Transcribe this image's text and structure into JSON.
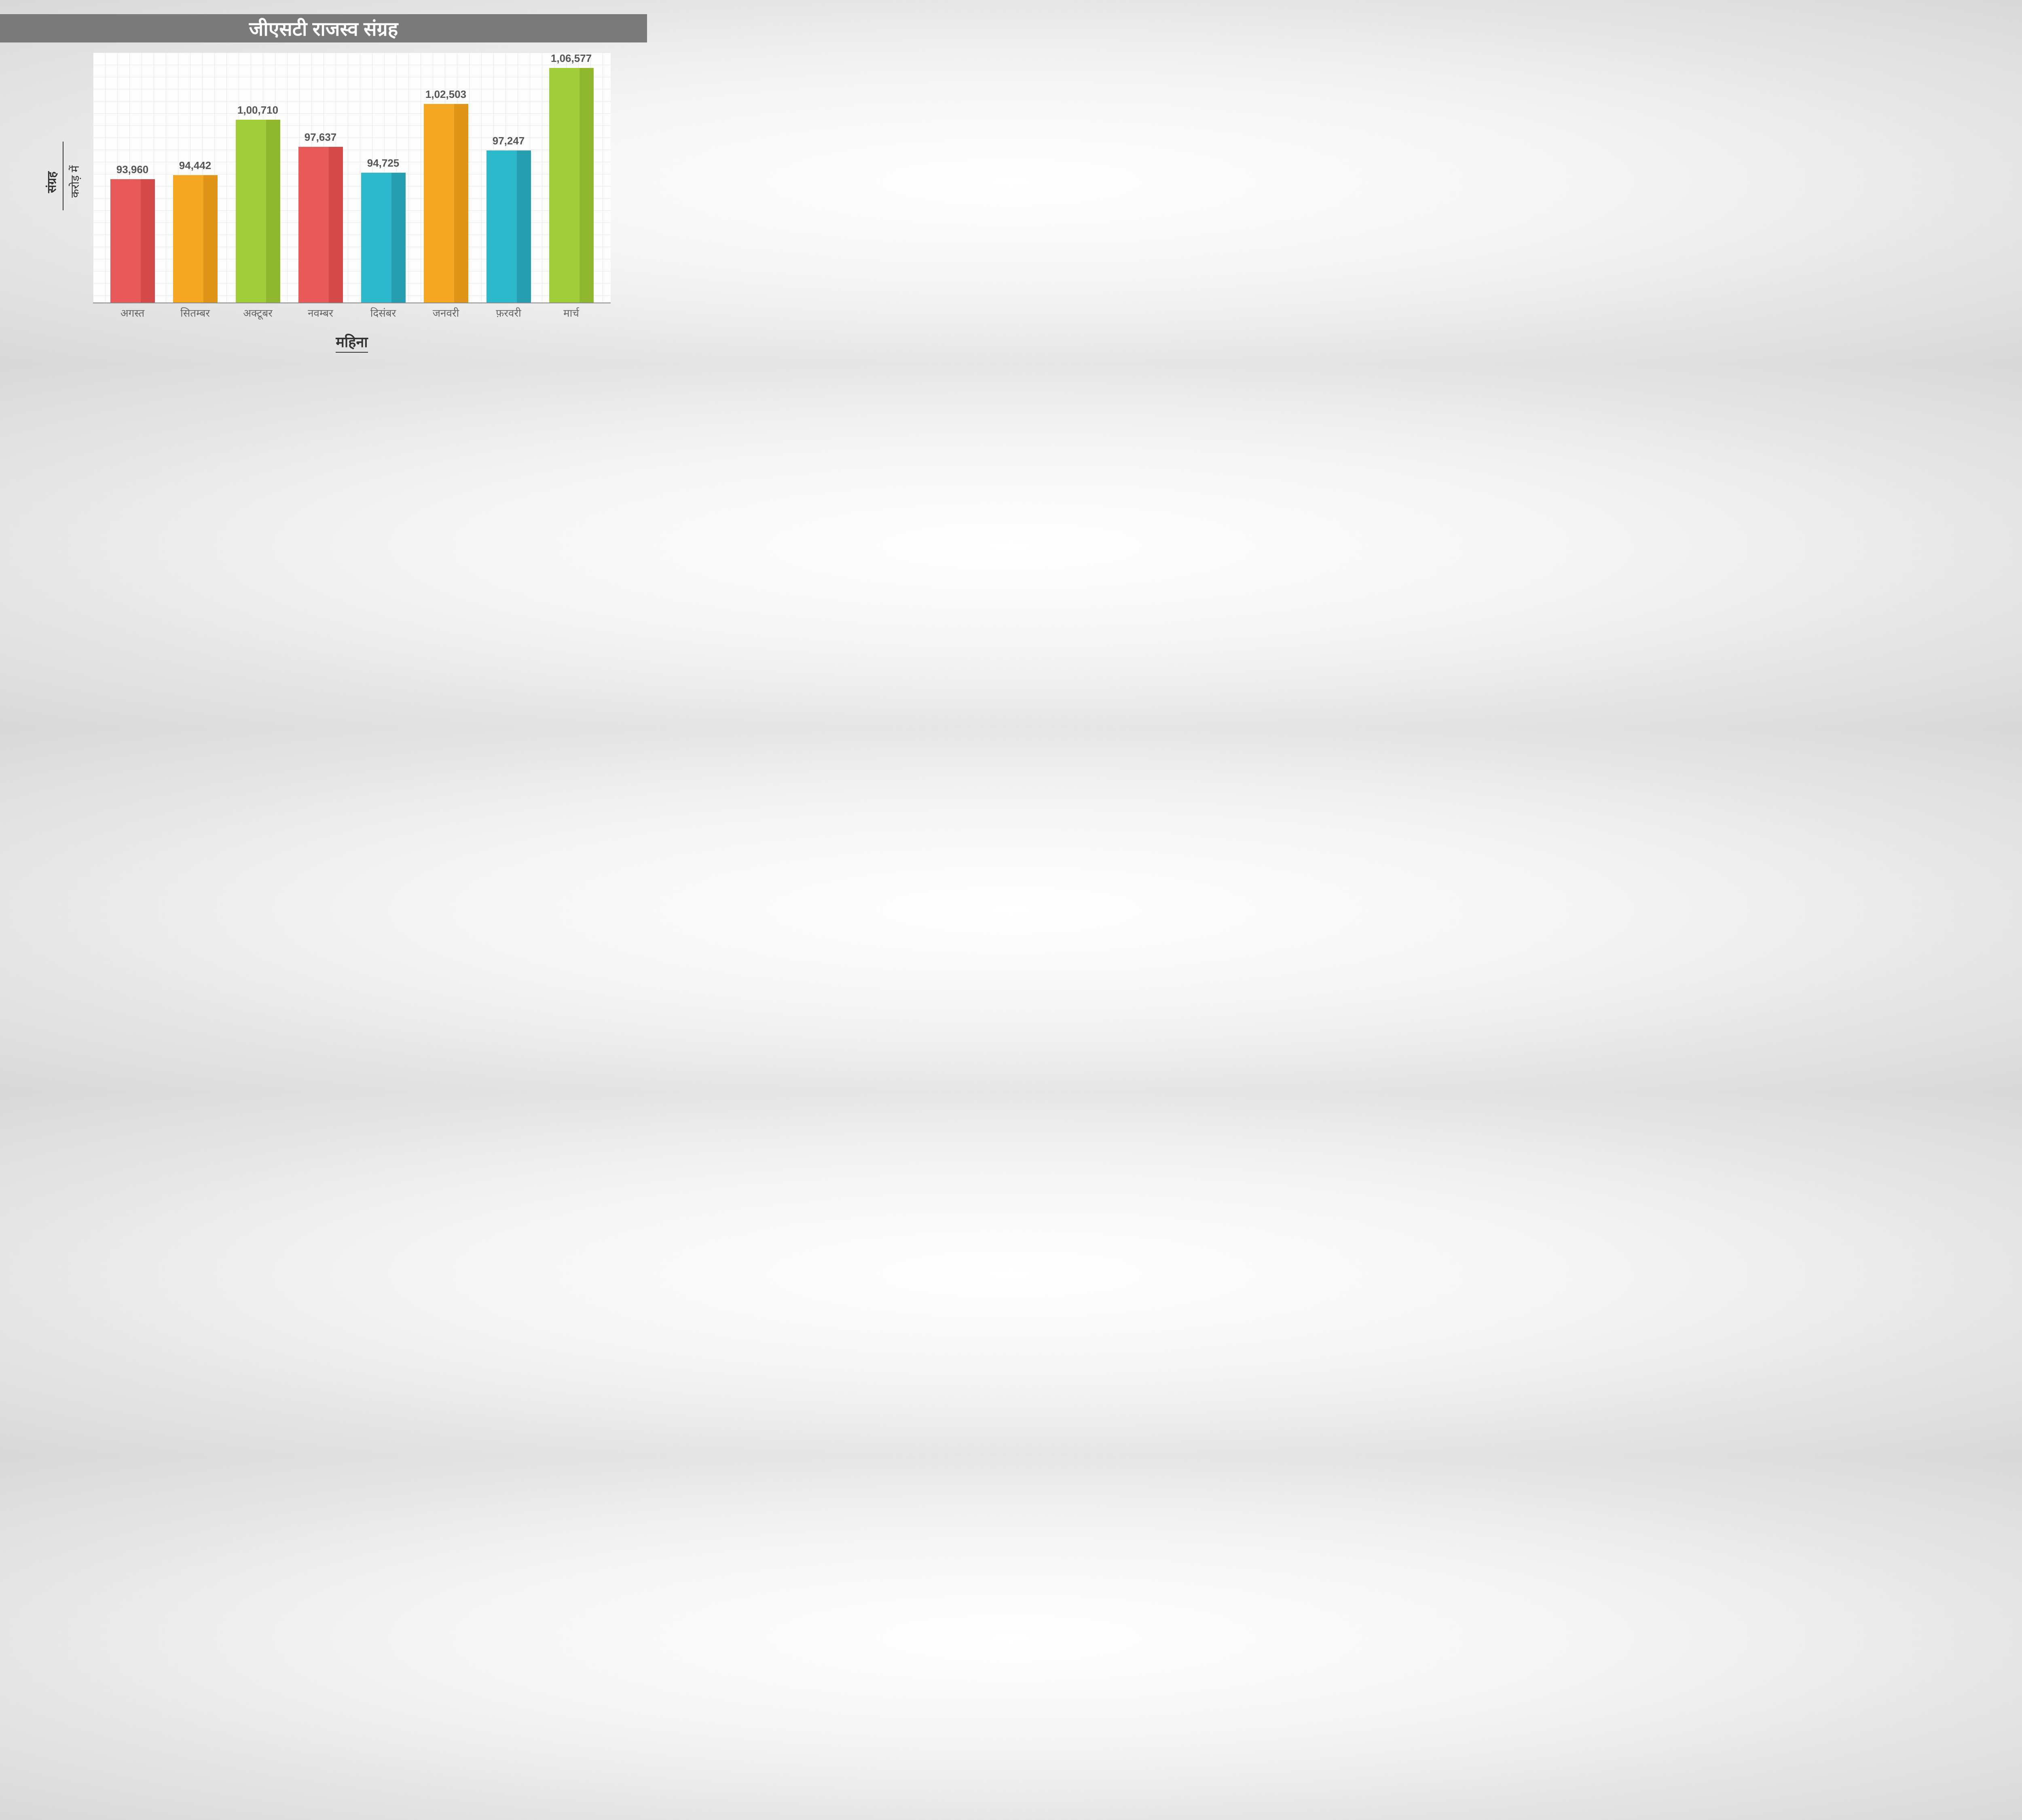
{
  "title": "जीएसटी राजस्व संग्रह",
  "y_axis_title": "संग्रह",
  "y_axis_subtitle": "करोड़ में",
  "x_axis_title": "महिना",
  "chart": {
    "type": "bar",
    "background_color": "#fdfdfd",
    "grid_color": "#e8e8e8",
    "axis_color": "#888888",
    "label_color": "#555555",
    "label_fontsize": 26,
    "min_value": 80000,
    "max_value": 107000,
    "bars": [
      {
        "month": "अगस्त",
        "value": 93960,
        "label": "93,960",
        "front_color": "#e85a5a",
        "side_color": "#d44a4a"
      },
      {
        "month": "सितम्बर",
        "value": 94442,
        "label": "94,442",
        "front_color": "#f5a623",
        "side_color": "#e09418"
      },
      {
        "month": "अक्टूबर",
        "value": 100710,
        "label": "1,00,710",
        "front_color": "#a0cc3a",
        "side_color": "#8fb82f"
      },
      {
        "month": "नवम्बर",
        "value": 97637,
        "label": "97,637",
        "front_color": "#e85a5a",
        "side_color": "#d44a4a"
      },
      {
        "month": "दिसंबर",
        "value": 94725,
        "label": "94,725",
        "front_color": "#2eb8cc",
        "side_color": "#259fb0"
      },
      {
        "month": "जनवरी",
        "value": 102503,
        "label": "1,02,503",
        "front_color": "#f5a623",
        "side_color": "#e09418"
      },
      {
        "month": "फ़रवरी",
        "value": 97247,
        "label": "97,247",
        "front_color": "#2eb8cc",
        "side_color": "#259fb0"
      },
      {
        "month": "मार्च",
        "value": 106577,
        "label": "1,06,577",
        "front_color": "#a0cc3a",
        "side_color": "#8fb82f"
      }
    ]
  }
}
